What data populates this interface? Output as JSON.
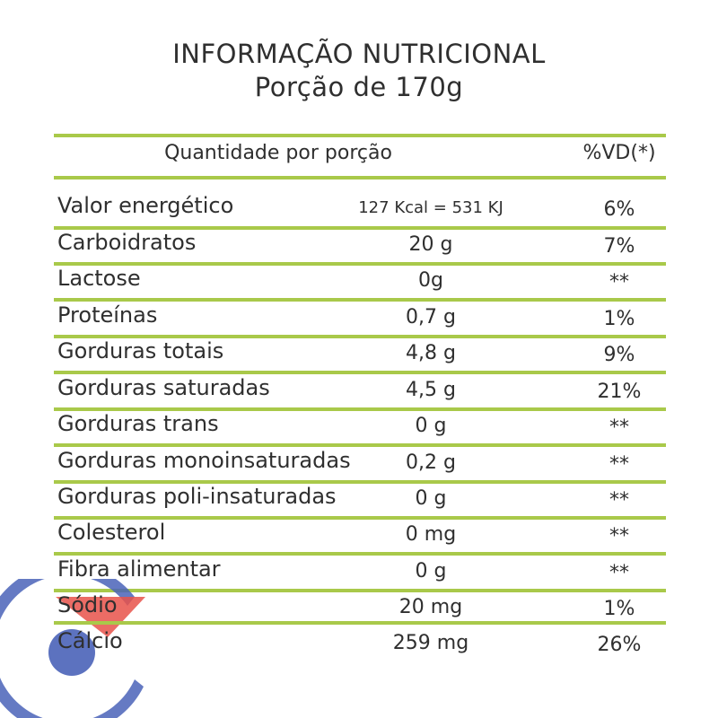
{
  "title": {
    "line1": "INFORMAÇÃO NUTRICIONAL",
    "line2": "Porção de 170g"
  },
  "header": {
    "quantity": "Quantidade por porção",
    "vd": "%VD(*)"
  },
  "rows": [
    {
      "name": "Valor energético",
      "amount": "127 Kcal = 531 KJ",
      "vd": "6%"
    },
    {
      "name": "Carboidratos",
      "amount": "20 g",
      "vd": "7%"
    },
    {
      "name": "Lactose",
      "amount": "0g",
      "vd": "**"
    },
    {
      "name": "Proteínas",
      "amount": "0,7 g",
      "vd": "1%"
    },
    {
      "name": "Gorduras totais",
      "amount": "4,8 g",
      "vd": "9%"
    },
    {
      "name": "Gorduras saturadas",
      "amount": "4,5 g",
      "vd": "21%"
    },
    {
      "name": "Gorduras trans",
      "amount": "0 g",
      "vd": "**"
    },
    {
      "name": "Gorduras monoinsaturadas",
      "amount": "0,2 g",
      "vd": "**"
    },
    {
      "name": "Gorduras poli-insaturadas",
      "amount": "0 g",
      "vd": "**"
    },
    {
      "name": "Colesterol",
      "amount": "0 mg",
      "vd": "**"
    },
    {
      "name": "Fibra alimentar",
      "amount": "0 g",
      "vd": "**"
    },
    {
      "name": "Sódio",
      "amount": "20 mg",
      "vd": "1%"
    },
    {
      "name": "Cálcio",
      "amount": "259 mg",
      "vd": "26%"
    }
  ],
  "colors": {
    "rule": "#a9c94a",
    "text": "#2f2f2f",
    "logo_blue": "#4a63b8",
    "logo_red": "#e8524a"
  }
}
